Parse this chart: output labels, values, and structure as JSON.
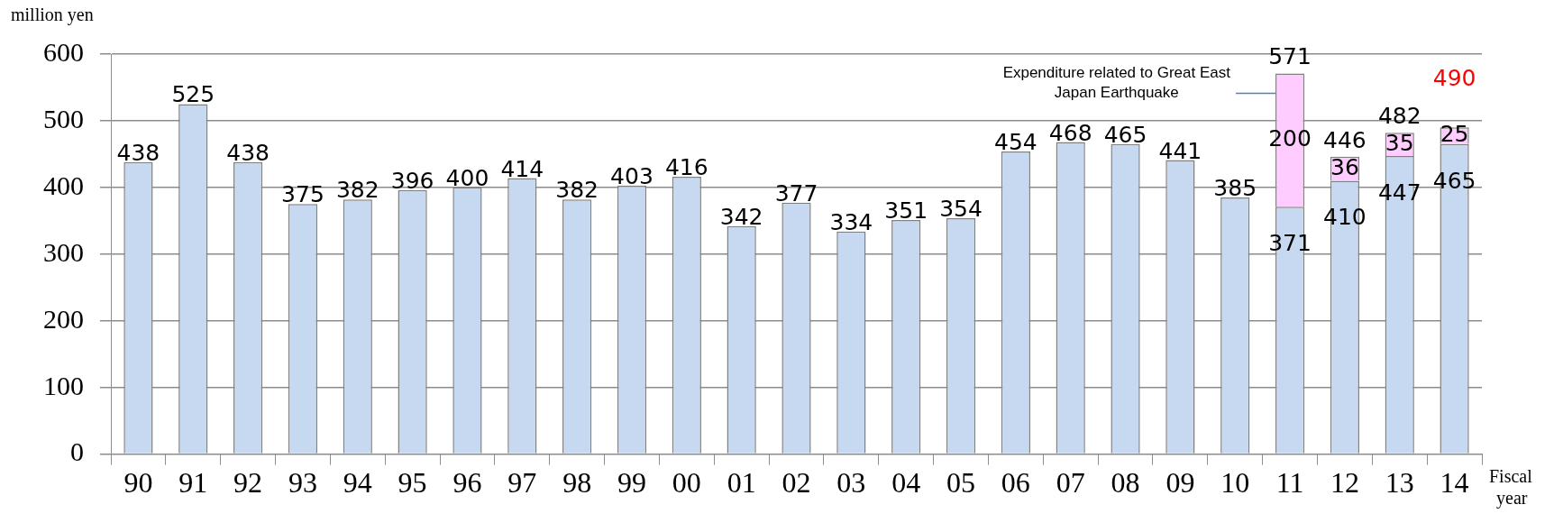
{
  "chart_data": {
    "type": "bar",
    "stacked": true,
    "ylabel": "million yen",
    "xlabel": "Fiscal year",
    "categories": [
      "90",
      "91",
      "92",
      "93",
      "94",
      "95",
      "96",
      "97",
      "98",
      "99",
      "00",
      "01",
      "02",
      "03",
      "04",
      "05",
      "06",
      "07",
      "08",
      "09",
      "10",
      "11",
      "12",
      "13",
      "14"
    ],
    "series": [
      {
        "color": "#c6d9f0",
        "values": [
          438,
          525,
          438,
          375,
          382,
          396,
          400,
          414,
          382,
          403,
          416,
          342,
          377,
          334,
          351,
          354,
          454,
          468,
          465,
          441,
          385,
          371,
          410,
          447,
          465
        ]
      },
      {
        "name": "Expenditure related to Great East Japan Earthquake",
        "color": "#ffccff",
        "values": [
          null,
          null,
          null,
          null,
          null,
          null,
          null,
          null,
          null,
          null,
          null,
          null,
          null,
          null,
          null,
          null,
          null,
          null,
          null,
          null,
          null,
          200,
          36,
          35,
          25
        ]
      }
    ],
    "totals": [
      null,
      null,
      null,
      null,
      null,
      null,
      null,
      null,
      null,
      null,
      null,
      null,
      null,
      null,
      null,
      null,
      null,
      null,
      null,
      null,
      null,
      "571",
      "446",
      "482",
      "490"
    ],
    "data_labels": true,
    "ylim": [
      0,
      600
    ],
    "yticks": [
      0,
      100,
      200,
      300,
      400,
      500,
      600
    ],
    "grid": "y",
    "legend": false
  }
}
